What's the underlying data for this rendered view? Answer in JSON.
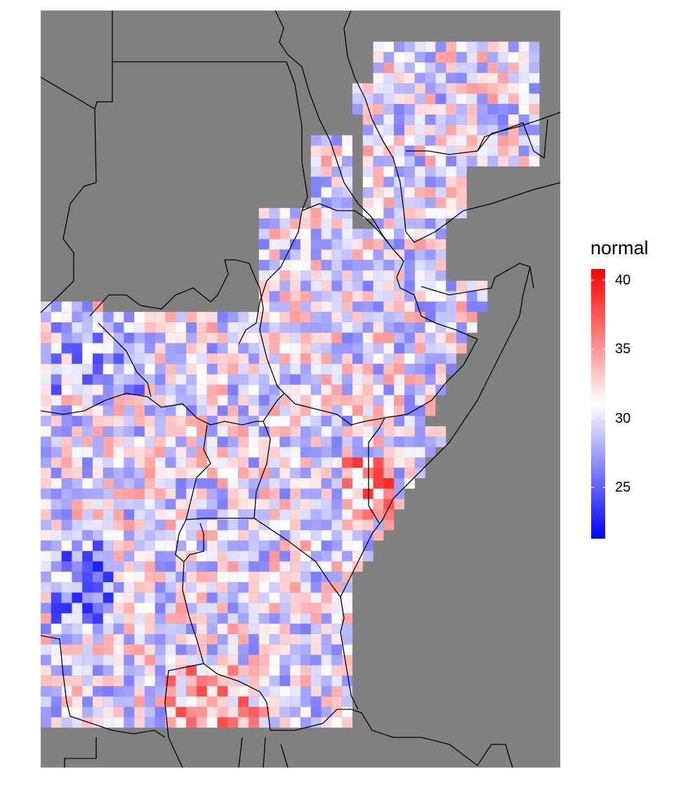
{
  "legend": {
    "title": "normal",
    "min": 21.3,
    "max": 40.8,
    "ticks": [
      {
        "label": "40",
        "value": 40
      },
      {
        "label": "35",
        "value": 35
      },
      {
        "label": "30",
        "value": 30
      },
      {
        "label": "25",
        "value": 25
      }
    ],
    "colors": {
      "low": "#0000ff",
      "mid": "#ffffff",
      "high": "#ff0000"
    },
    "midpoint": 31
  },
  "map": {
    "land_color": "#808080",
    "border_color": "#000000",
    "data_note_hidden": false
  },
  "grid": {
    "cols": 50,
    "rows": 69,
    "seed": 7
  }
}
